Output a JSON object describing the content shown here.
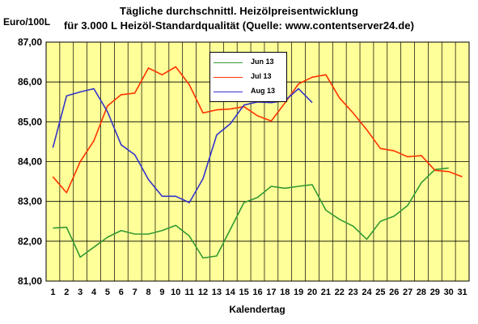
{
  "chart_data": {
    "type": "line",
    "title": "Tägliche durchschnittl. Heizölpreisentwicklung",
    "subtitle": "für 3.000 L Heizöl-Standardqualität (Quelle: www.contentserver24.de)",
    "ylabel": "Euro/100L",
    "xlabel": "Kalendertag",
    "ylim": [
      81,
      87
    ],
    "yticks": [
      "81,00",
      "82,00",
      "83,00",
      "84,00",
      "85,00",
      "86,00",
      "87,00"
    ],
    "x": [
      1,
      2,
      3,
      4,
      5,
      6,
      7,
      8,
      9,
      10,
      11,
      12,
      13,
      14,
      15,
      16,
      17,
      18,
      19,
      20,
      21,
      22,
      23,
      24,
      25,
      26,
      27,
      28,
      29,
      30,
      31
    ],
    "grid": true,
    "legend_position": "top-center",
    "plot_background": "#ffff99",
    "series": [
      {
        "name": "Jun 13",
        "color": "#339933",
        "values": [
          82.33,
          82.35,
          81.6,
          81.85,
          82.1,
          82.27,
          82.18,
          82.18,
          82.27,
          82.4,
          82.13,
          81.58,
          81.63,
          82.3,
          82.97,
          83.1,
          83.38,
          83.33,
          83.38,
          83.42,
          82.78,
          82.55,
          82.38,
          82.05,
          82.5,
          82.63,
          82.9,
          83.47,
          83.8,
          83.84,
          null
        ]
      },
      {
        "name": "Jul 13",
        "color": "#ff3300",
        "values": [
          83.62,
          83.22,
          84.0,
          84.52,
          85.4,
          85.68,
          85.72,
          86.35,
          86.18,
          86.38,
          85.93,
          85.22,
          85.3,
          85.32,
          85.38,
          85.15,
          85.02,
          85.47,
          85.95,
          86.12,
          86.18,
          85.6,
          85.22,
          84.8,
          84.33,
          84.27,
          84.12,
          84.15,
          83.78,
          83.75,
          83.62
        ]
      },
      {
        "name": "Aug 13",
        "color": "#3333cc",
        "values": [
          84.35,
          85.65,
          85.75,
          85.83,
          85.25,
          84.42,
          84.17,
          83.55,
          83.13,
          83.13,
          82.97,
          83.57,
          84.67,
          84.95,
          85.42,
          85.5,
          85.48,
          85.53,
          85.83,
          85.48,
          null,
          null,
          null,
          null,
          null,
          null,
          null,
          null,
          null,
          null,
          null
        ]
      }
    ]
  }
}
